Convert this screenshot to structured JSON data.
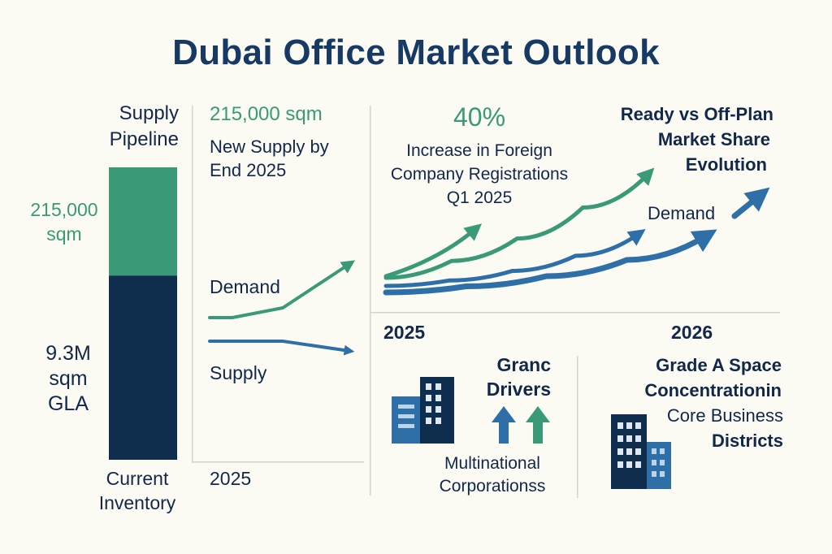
{
  "title": "Dubai Office Market Outlook",
  "colors": {
    "navy": "#0f2e4e",
    "green": "#3a9a78",
    "blue": "#2e6fa8",
    "text": "#12284a"
  },
  "pipeline_panel": {
    "heading": "Supply Pipeline",
    "pipeline_label": "215,000 sqm",
    "inventory_label": "9.3M sqm GLA",
    "footer": "Current Inventory"
  },
  "supply_demand_panel": {
    "stat_value": "215,000 sqm",
    "stat_label": "New Supply by End 2025",
    "demand_label": "Demand",
    "supply_label": "Supply",
    "year_label": "2025"
  },
  "registrations_panel": {
    "stat_value": "40%",
    "stat_label_line1": "Increase in Foreign",
    "stat_label_line2": "Company Registrations",
    "stat_label_line3": "Q1 2025",
    "share_heading_line1": "Ready vs Off-Plan",
    "share_heading_line2": "Market Share",
    "share_heading_line3": "Evolution",
    "demand_label": "Demand",
    "year_start": "2025",
    "year_end": "2026"
  },
  "drivers_panel": {
    "heading_line1": "Granc",
    "heading_line2": "Drivers",
    "caption_line1": "Multinational",
    "caption_line2": "Corporationss",
    "icons": [
      "building-icon",
      "up-arrow-icon"
    ]
  },
  "grade_a_panel": {
    "heading_line1": "Grade A Space",
    "heading_line2": "Concentrationin",
    "heading_line3": "Core Business",
    "heading_line4": "Districts",
    "icons": [
      "building-icon"
    ]
  },
  "chart_data": [
    {
      "type": "bar",
      "categories": [
        "Current Inventory"
      ],
      "series": [
        {
          "name": "9.3M sqm GLA",
          "values": [
            9300000
          ]
        },
        {
          "name": "215,000 sqm",
          "values": [
            215000
          ]
        }
      ],
      "stacked": true,
      "title": "Supply Pipeline"
    },
    {
      "type": "line",
      "x": [
        "",
        "",
        "",
        "2025"
      ],
      "series": [
        {
          "name": "Demand",
          "values": [
            0,
            0,
            0.4,
            2.2
          ]
        },
        {
          "name": "Supply",
          "values": [
            0,
            0,
            0,
            -0.4
          ]
        }
      ]
    },
    {
      "type": "line",
      "x": [
        "2025",
        "",
        "",
        "",
        "2026"
      ],
      "series": [
        {
          "name": "",
          "values": [
            0.8,
            2.0,
            3.6,
            5.8,
            8.2
          ]
        },
        {
          "name": "",
          "values": [
            0.4,
            0.8,
            1.5,
            2.6,
            4.2
          ]
        },
        {
          "name": "Demand",
          "values": [
            0.2,
            0.5,
            1.0,
            1.8,
            3.0
          ]
        }
      ]
    }
  ]
}
